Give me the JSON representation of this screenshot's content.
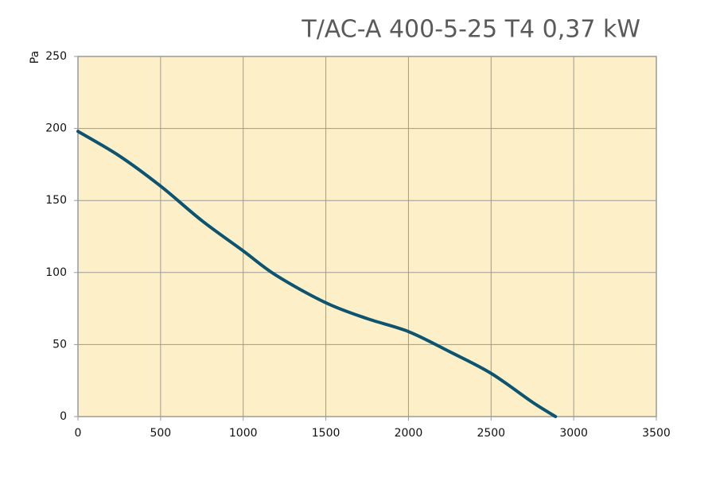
{
  "chart_data": {
    "type": "line",
    "title": "T/AC-A  400-5-25 T4  0,37 kW",
    "y_label": "Pa",
    "x": [
      0,
      250,
      500,
      750,
      1000,
      1200,
      1500,
      1750,
      2000,
      2250,
      2500,
      2750,
      2890
    ],
    "values": [
      198,
      181,
      160,
      136,
      115,
      98,
      79,
      68,
      59,
      45,
      30,
      10,
      0
    ],
    "color": "#0d5470",
    "background": "#fdf0c8",
    "grid_color": "#9a9a9a",
    "xlim": [
      0,
      3500
    ],
    "xticks": [
      0,
      500,
      1000,
      1500,
      2000,
      2500,
      3000,
      3500
    ],
    "ylim": [
      0,
      250
    ],
    "yticks": [
      0,
      50,
      100,
      150,
      200,
      250
    ],
    "grid": true
  }
}
